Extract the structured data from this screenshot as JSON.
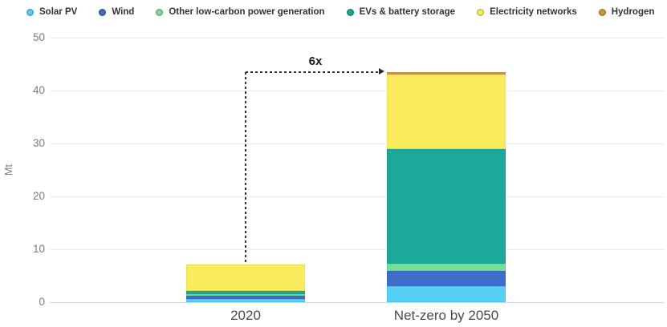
{
  "chart_data": {
    "type": "bar",
    "stacked": true,
    "ylabel": "Mt",
    "ylim": [
      0,
      50
    ],
    "yticks": [
      0,
      10,
      20,
      30,
      40,
      50
    ],
    "grid": true,
    "legend_position": "top",
    "categories": [
      "2020",
      "Net-zero by 2050"
    ],
    "series": [
      {
        "name": "Solar PV",
        "color": "#55CFF4",
        "values": [
          0.6,
          3.0
        ]
      },
      {
        "name": "Wind",
        "color": "#3E6DCC",
        "values": [
          0.65,
          2.9
        ]
      },
      {
        "name": "Other low-carbon power generation",
        "color": "#74E093",
        "values": [
          0.3,
          1.4
        ]
      },
      {
        "name": "EVs & battery storage",
        "color": "#1CA89A",
        "values": [
          0.55,
          21.7
        ]
      },
      {
        "name": "Electricity networks",
        "color": "#F8EC5C",
        "values": [
          5.0,
          14.0
        ]
      },
      {
        "name": "Hydrogen",
        "color": "#CE9743",
        "values": [
          0.02,
          0.5
        ]
      }
    ],
    "totals": [
      7.1,
      43.5
    ],
    "annotation": {
      "label": "6x",
      "from_category": "2020",
      "to_category": "Net-zero by 2050"
    }
  }
}
